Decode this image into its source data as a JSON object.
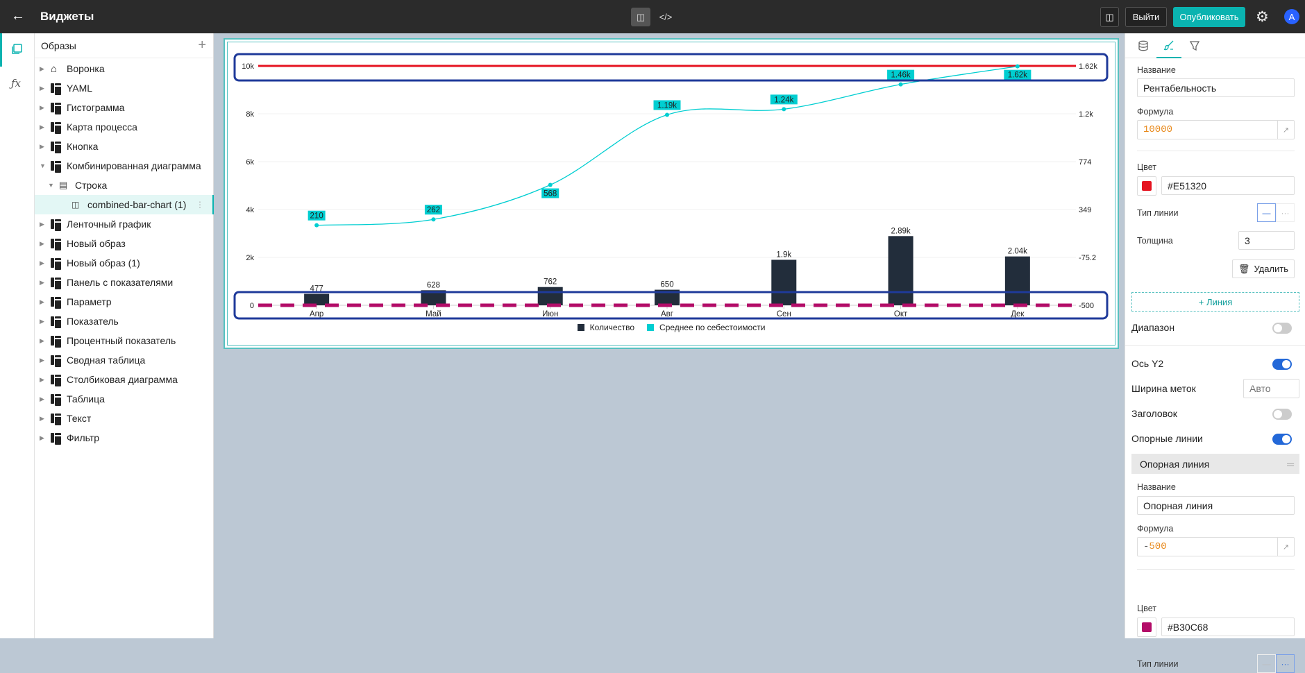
{
  "topbar": {
    "title": "Виджеты",
    "logout": "Выйти",
    "publish": "Опубликовать",
    "avatar": "A"
  },
  "tree": {
    "header": "Образы",
    "items": [
      {
        "label": "Воронка",
        "icon": "home-icon",
        "expanded": false
      },
      {
        "label": "YAML",
        "icon": "widget-icon"
      },
      {
        "label": "Гистограмма",
        "icon": "widget-icon"
      },
      {
        "label": "Карта процесса",
        "icon": "widget-icon"
      },
      {
        "label": "Кнопка",
        "icon": "widget-icon"
      },
      {
        "label": "Комбинированная диаграмма",
        "icon": "widget-icon",
        "expanded": true
      },
      {
        "label": "Строка",
        "icon": "row-icon",
        "expanded": true
      },
      {
        "label": "combined-bar-chart (1)",
        "icon": "combined-chart-icon",
        "selected": true
      },
      {
        "label": "Ленточный график",
        "icon": "widget-icon"
      },
      {
        "label": "Новый образ",
        "icon": "widget-icon"
      },
      {
        "label": "Новый образ (1)",
        "icon": "widget-icon"
      },
      {
        "label": "Панель с показателями",
        "icon": "widget-icon"
      },
      {
        "label": "Параметр",
        "icon": "widget-icon"
      },
      {
        "label": "Показатель",
        "icon": "widget-icon"
      },
      {
        "label": "Процентный показатель",
        "icon": "widget-icon"
      },
      {
        "label": "Сводная таблица",
        "icon": "widget-icon"
      },
      {
        "label": "Столбиковая диаграмма",
        "icon": "widget-icon"
      },
      {
        "label": "Таблица",
        "icon": "widget-icon"
      },
      {
        "label": "Текст",
        "icon": "widget-icon"
      },
      {
        "label": "Фильтр",
        "icon": "widget-icon"
      }
    ]
  },
  "chart_data": {
    "type": "bar+line",
    "categories": [
      "Апр",
      "Май",
      "Июн",
      "Авг",
      "Сен",
      "Окт",
      "Дек"
    ],
    "series": [
      {
        "name": "Количество",
        "type": "bar",
        "axis": "y1",
        "color": "#222d3b",
        "values": [
          477,
          628,
          762,
          650,
          1900,
          2890,
          2040
        ],
        "labels": [
          "477",
          "628",
          "762",
          "650",
          "1.9k",
          "2.89k",
          "2.04k"
        ]
      },
      {
        "name": "Среднее по себестоимости",
        "type": "line",
        "axis": "y2",
        "color": "#00ced1",
        "values": [
          210,
          262,
          568,
          1190,
          1240,
          1460,
          1620
        ],
        "labels": [
          "210",
          "262",
          "568",
          "1.19k",
          "1.24k",
          "1.46k",
          "1.62k"
        ]
      }
    ],
    "y1": {
      "ylim": [
        0,
        10000
      ],
      "ticks": [
        "0",
        "2k",
        "4k",
        "6k",
        "8k",
        "10k"
      ]
    },
    "y2": {
      "ylim": [
        -500,
        1624
      ],
      "ticks": [
        "-500",
        "-75.2",
        "349",
        "774",
        "1.2k",
        "1.62k"
      ]
    },
    "reference_lines": [
      {
        "name": "Рентабельность",
        "value": 10000,
        "axis": "y1",
        "color": "#E51320",
        "style": "solid",
        "width": 3
      },
      {
        "name": "Опорная линия",
        "value": -500,
        "axis": "y2",
        "color": "#B30C68",
        "style": "dashed"
      }
    ],
    "legend": "bottom",
    "grid": true
  },
  "panel": {
    "line1": {
      "name_label": "Название",
      "name": "Рентабельность",
      "formula_label": "Формула",
      "formula": "10000",
      "color_label": "Цвет",
      "color": "#E51320",
      "type_label": "Тип линии",
      "width_label": "Толщина",
      "width": "3",
      "delete": "Удалить"
    },
    "add_line": "+ Линия",
    "range": "Диапазон",
    "y2": "Ось Y2",
    "label_width": "Ширина меток",
    "label_width_placeholder": "Авто",
    "header": "Заголовок",
    "ref_lines": "Опорные линии",
    "ref_title": "Опорная линия",
    "line2": {
      "name_label": "Название",
      "name": "Опорная линия",
      "formula_label": "Формула",
      "formula_minus": "-",
      "formula_num": "500",
      "color_label": "Цвет",
      "color": "#B30C68",
      "type_label": "Тип линии"
    }
  }
}
